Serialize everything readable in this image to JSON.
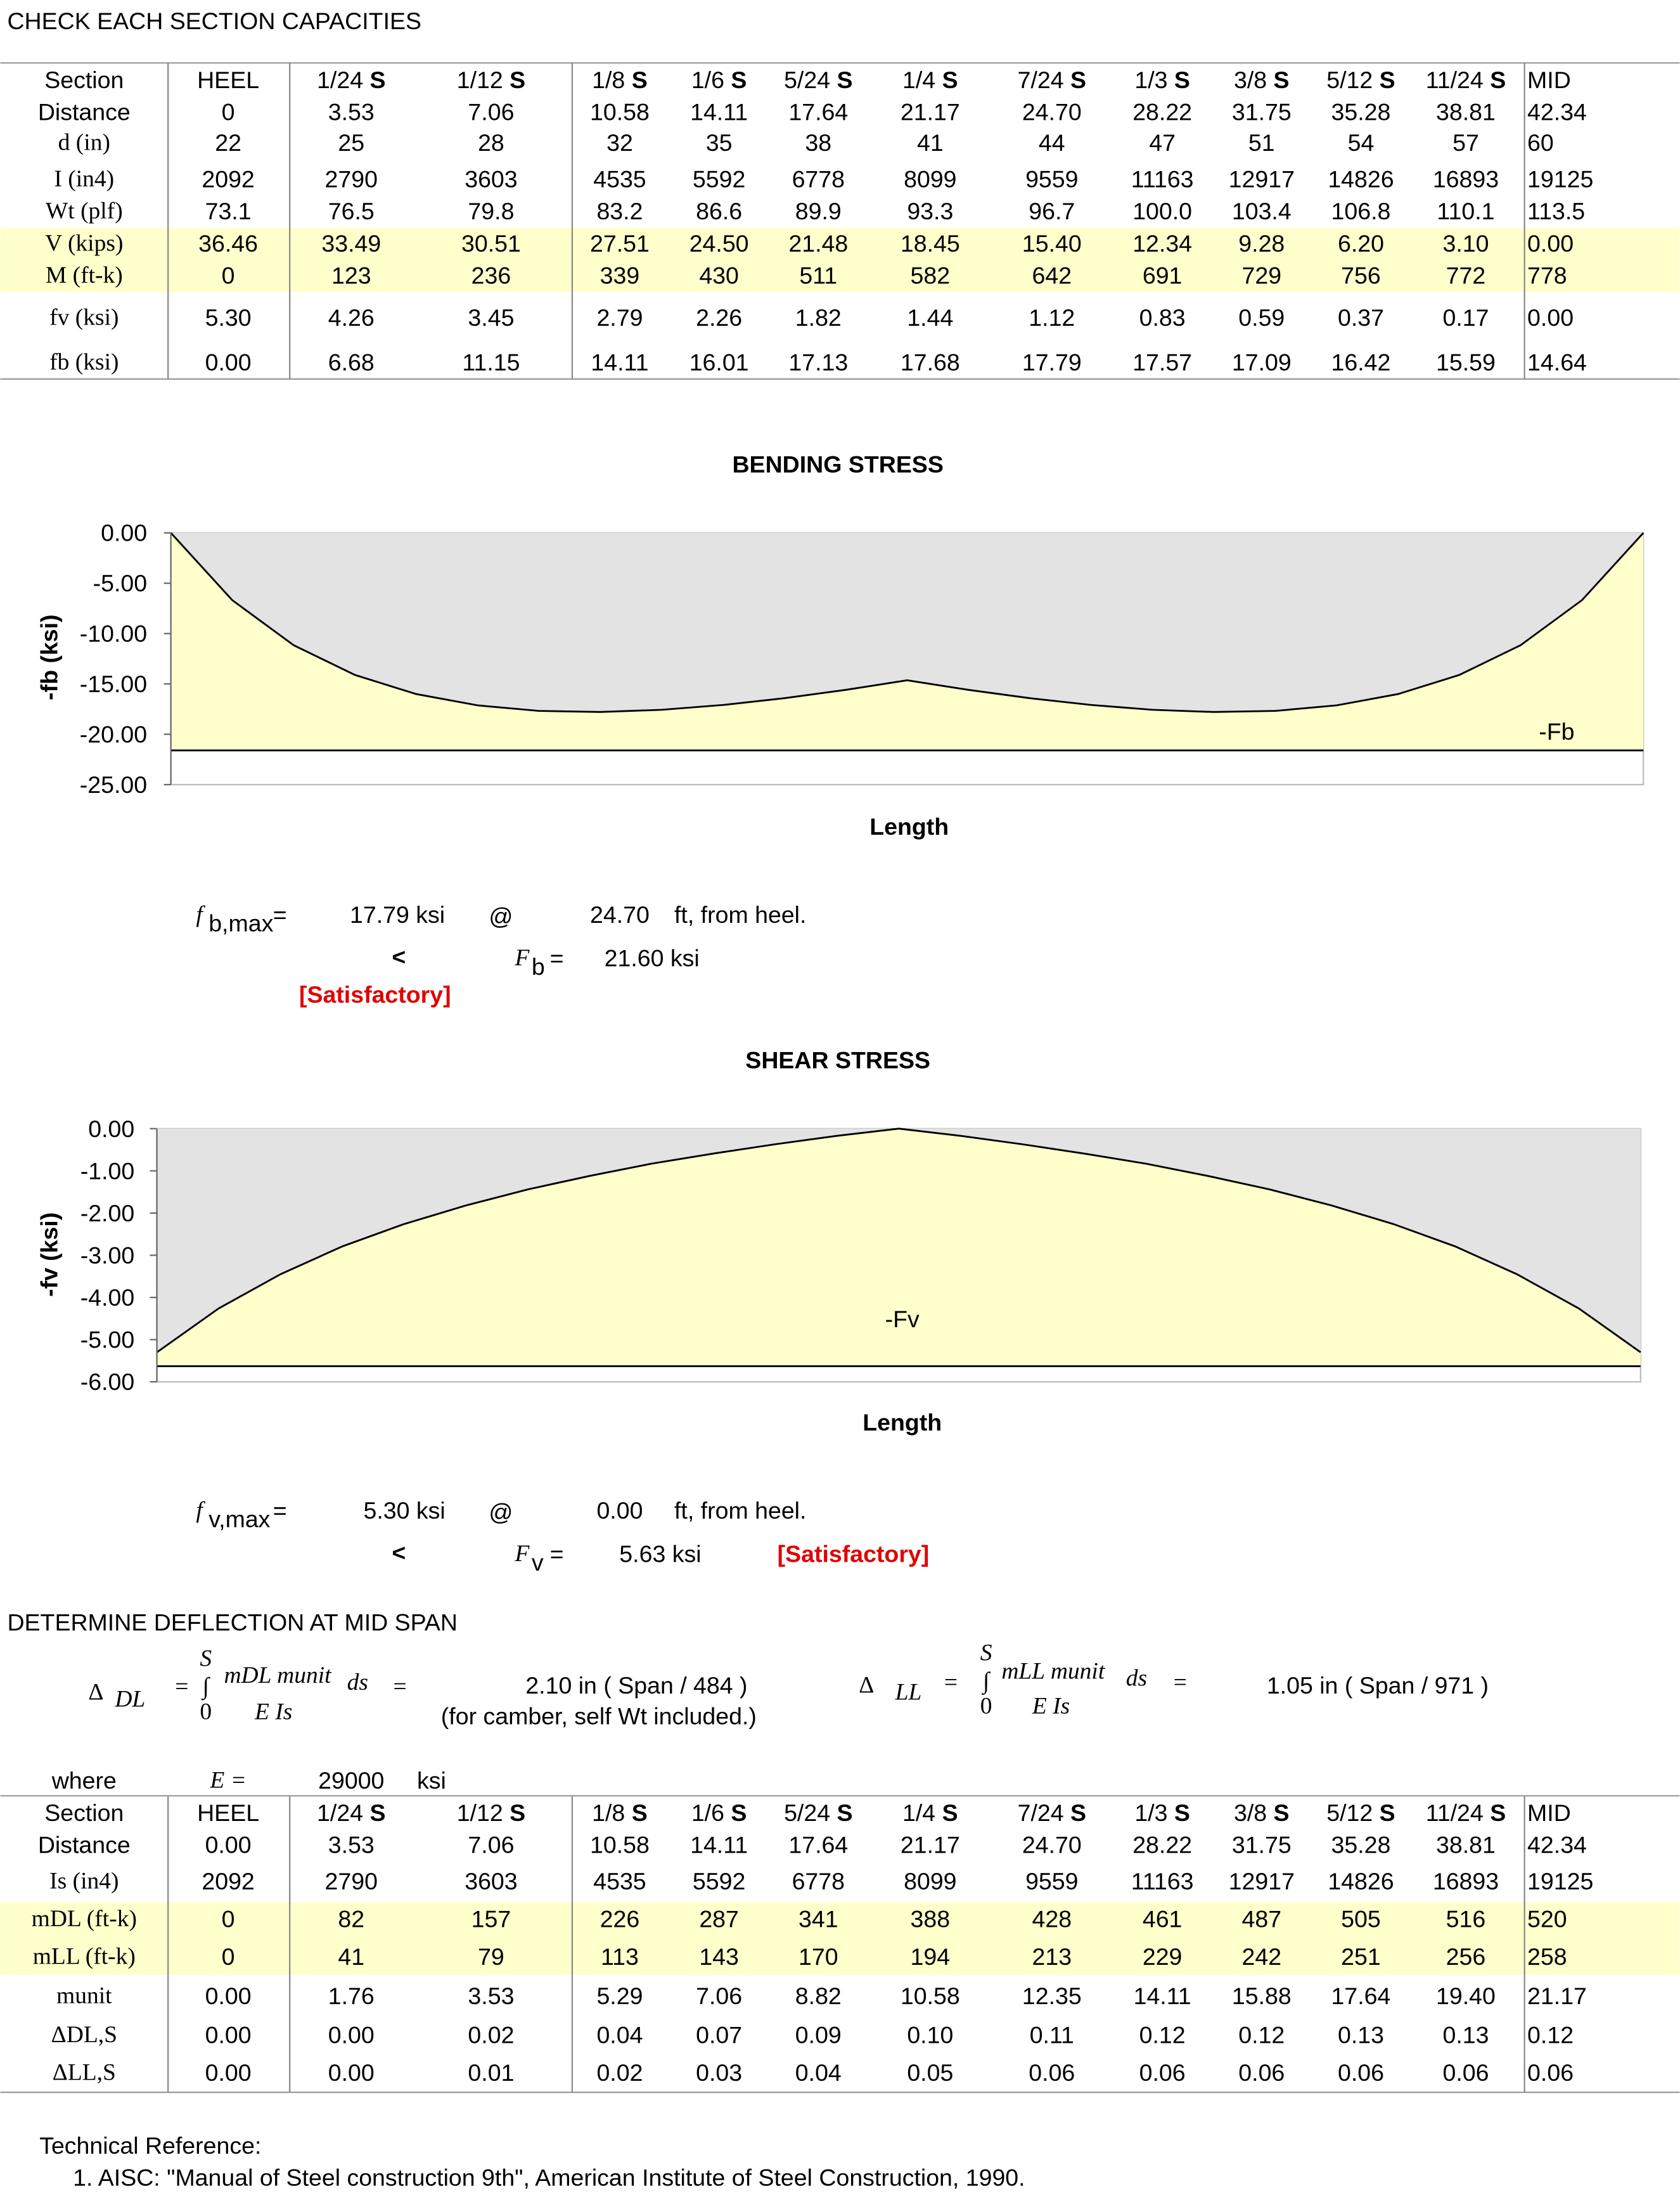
{
  "title": "CHECK EACH SECTION CAPACITIES",
  "table1": {
    "rows": [
      [
        "Section",
        "HEEL",
        "1/24 S",
        "1/12 S",
        "1/8 S",
        "1/6 S",
        "5/24 S",
        "1/4 S",
        "7/24 S",
        "1/3 S",
        "3/8 S",
        "5/12 S",
        "11/24 S",
        "MID"
      ],
      [
        "Distance",
        "0",
        "3.53",
        "7.06",
        "10.58",
        "14.11",
        "17.64",
        "21.17",
        "24.70",
        "28.22",
        "31.75",
        "35.28",
        "38.81",
        "42.34"
      ],
      [
        "d (in)",
        "22",
        "25",
        "28",
        "32",
        "35",
        "38",
        "41",
        "44",
        "47",
        "51",
        "54",
        "57",
        "60"
      ],
      [
        "I (in4)",
        "2092",
        "2790",
        "3603",
        "4535",
        "5592",
        "6778",
        "8099",
        "9559",
        "11163",
        "12917",
        "14826",
        "16893",
        "19125"
      ],
      [
        "Wt (plf)",
        "73.1",
        "76.5",
        "79.8",
        "83.2",
        "86.6",
        "89.9",
        "93.3",
        "96.7",
        "100.0",
        "103.4",
        "106.8",
        "110.1",
        "113.5"
      ],
      [
        "V (kips)",
        "36.46",
        "33.49",
        "30.51",
        "27.51",
        "24.50",
        "21.48",
        "18.45",
        "15.40",
        "12.34",
        "9.28",
        "6.20",
        "3.10",
        "0.00"
      ],
      [
        "M (ft-k)",
        "0",
        "123",
        "236",
        "339",
        "430",
        "511",
        "582",
        "642",
        "691",
        "729",
        "756",
        "772",
        "778"
      ],
      [
        "fv (ksi)",
        "5.30",
        "4.26",
        "3.45",
        "2.79",
        "2.26",
        "1.82",
        "1.44",
        "1.12",
        "0.83",
        "0.59",
        "0.37",
        "0.17",
        "0.00"
      ],
      [
        "fb (ksi)",
        "0.00",
        "6.68",
        "11.15",
        "14.11",
        "16.01",
        "17.13",
        "17.68",
        "17.79",
        "17.57",
        "17.09",
        "16.42",
        "15.59",
        "14.64"
      ]
    ]
  },
  "chart_data": [
    {
      "type": "area",
      "title": "BENDING STRESS",
      "x_label": "Length",
      "y_label": "-fb (ksi)",
      "ylim": [
        -25,
        0
      ],
      "yticks": [
        {
          "value": 0,
          "label": "0.00"
        },
        {
          "value": -5,
          "label": "-5.00"
        },
        {
          "value": -10,
          "label": "-10.00"
        },
        {
          "value": -15,
          "label": "-15.00"
        },
        {
          "value": -20,
          "label": "-20.00"
        },
        {
          "value": -25,
          "label": "-25.00"
        }
      ],
      "series": [
        {
          "color": "#e3e3e3",
          "values": [
            0,
            -6.68,
            -11.15,
            -14.11,
            -16.01,
            -17.13,
            -17.68,
            -17.79,
            -17.57,
            -17.09,
            -16.42,
            -15.59,
            -14.64,
            -15.59,
            -16.42,
            -17.09,
            -17.57,
            -17.79,
            -17.68,
            -17.13,
            -16.01,
            -14.11,
            -11.15,
            -6.68,
            0
          ]
        },
        {
          "name": "-Fb",
          "color": "#ffffcc",
          "values": [
            -21.6,
            -21.6,
            -21.6,
            -21.6,
            -21.6,
            -21.6,
            -21.6,
            -21.6,
            -21.6,
            -21.6,
            -21.6,
            -21.6,
            -21.6,
            -21.6,
            -21.6,
            -21.6,
            -21.6,
            -21.6,
            -21.6,
            -21.6,
            -21.6,
            -21.6,
            -21.6,
            -21.6,
            -21.6
          ]
        }
      ]
    },
    {
      "type": "area",
      "title": "SHEAR STRESS",
      "x_label": "Length",
      "y_label": "-fv (ksi)",
      "ylim": [
        -6,
        0
      ],
      "yticks": [
        {
          "value": 0,
          "label": "0.00"
        },
        {
          "value": -1,
          "label": "-1.00"
        },
        {
          "value": -2,
          "label": "-2.00"
        },
        {
          "value": -3,
          "label": "-3.00"
        },
        {
          "value": -4,
          "label": "-4.00"
        },
        {
          "value": -5,
          "label": "-5.00"
        },
        {
          "value": -6,
          "label": "-6.00"
        }
      ],
      "series": [
        {
          "color": "#e3e3e3",
          "values": [
            -5.3,
            -4.26,
            -3.45,
            -2.79,
            -2.26,
            -1.82,
            -1.44,
            -1.12,
            -0.83,
            -0.59,
            -0.37,
            -0.17,
            0,
            -0.17,
            -0.37,
            -0.59,
            -0.83,
            -1.12,
            -1.44,
            -1.82,
            -2.26,
            -2.79,
            -3.45,
            -4.26,
            -5.3
          ]
        },
        {
          "name": "-Fv",
          "color": "#ffffcc",
          "values": [
            -5.63,
            -5.63,
            -5.63,
            -5.63,
            -5.63,
            -5.63,
            -5.63,
            -5.63,
            -5.63,
            -5.63,
            -5.63,
            -5.63,
            -5.63,
            -5.63,
            -5.63,
            -5.63,
            -5.63,
            -5.63,
            -5.63,
            -5.63,
            -5.63,
            -5.63,
            -5.63,
            -5.63,
            -5.63
          ]
        }
      ]
    }
  ],
  "bending_result": {
    "f": "f",
    "sub": "b,max",
    "eq": "=",
    "value": "17.79 ksi",
    "at": "@",
    "location": "24.70",
    "from": "ft,  from heel.",
    "lt": "<",
    "F": "F",
    "Fsub": "b",
    "Feq": "=",
    "allow": "21.60 ksi",
    "status": "[Satisfactory]"
  },
  "shear_result": {
    "f": "f",
    "sub": "v,max",
    "eq": "=",
    "value": "5.30 ksi",
    "at": "@",
    "location": "0.00",
    "from": "ft,  from heel.",
    "lt": "<",
    "F": "F",
    "Fsub": "v",
    "Feq": "=",
    "allow": "5.63 ksi",
    "status": "[Satisfactory]"
  },
  "deflection": {
    "title": "DETERMINE DEFLECTION AT MID SPAN",
    "dl": {
      "symbol": "Δ",
      "sub": "DL",
      "eq": "=",
      "upper": "S",
      "integral": "∫",
      "lower": "0",
      "numerator": "mDL munit",
      "ds": "ds",
      "eq2": "=",
      "denominator": "E Is",
      "result": "2.10 in ( Span / 484 )",
      "note": "(for camber, self Wt included.)"
    },
    "ll": {
      "symbol": "Δ",
      "sub": "LL",
      "eq": "=",
      "upper": "S",
      "integral": "∫",
      "lower": "0",
      "numerator": "mLL munit",
      "ds": "ds",
      "eq2": "=",
      "denominator": "E Is",
      "result": "1.05 in ( Span / 971 )"
    }
  },
  "constants": {
    "where": "where",
    "E": "E =",
    "E_value": "29000",
    "E_unit": "ksi"
  },
  "table2": {
    "rows": [
      [
        "Section",
        "HEEL",
        "1/24 S",
        "1/12 S",
        "1/8 S",
        "1/6 S",
        "5/24 S",
        "1/4 S",
        "7/24 S",
        "1/3 S",
        "3/8 S",
        "5/12 S",
        "11/24 S",
        "MID"
      ],
      [
        "Distance",
        "0.00",
        "3.53",
        "7.06",
        "10.58",
        "14.11",
        "17.64",
        "21.17",
        "24.70",
        "28.22",
        "31.75",
        "35.28",
        "38.81",
        "42.34"
      ],
      [
        "Is (in4)",
        "2092",
        "2790",
        "3603",
        "4535",
        "5592",
        "6778",
        "8099",
        "9559",
        "11163",
        "12917",
        "14826",
        "16893",
        "19125"
      ],
      [
        "mDL (ft-k)",
        "0",
        "82",
        "157",
        "226",
        "287",
        "341",
        "388",
        "428",
        "461",
        "487",
        "505",
        "516",
        "520"
      ],
      [
        "mLL (ft-k)",
        "0",
        "41",
        "79",
        "113",
        "143",
        "170",
        "194",
        "213",
        "229",
        "242",
        "251",
        "256",
        "258"
      ],
      [
        "munit",
        "0.00",
        "1.76",
        "3.53",
        "5.29",
        "7.06",
        "8.82",
        "10.58",
        "12.35",
        "14.11",
        "15.88",
        "17.64",
        "19.40",
        "21.17"
      ],
      [
        "ΔDL,S",
        "0.00",
        "0.00",
        "0.02",
        "0.04",
        "0.07",
        "0.09",
        "0.10",
        "0.11",
        "0.12",
        "0.12",
        "0.13",
        "0.13",
        "0.12"
      ],
      [
        "ΔLL,S",
        "0.00",
        "0.00",
        "0.01",
        "0.02",
        "0.03",
        "0.04",
        "0.05",
        "0.06",
        "0.06",
        "0.06",
        "0.06",
        "0.06",
        "0.06"
      ]
    ]
  },
  "reference": {
    "heading": "Technical Reference:",
    "items": [
      "1. AISC: \"Manual of Steel construction 9th\", American Institute of Steel Construction, 1990."
    ]
  }
}
